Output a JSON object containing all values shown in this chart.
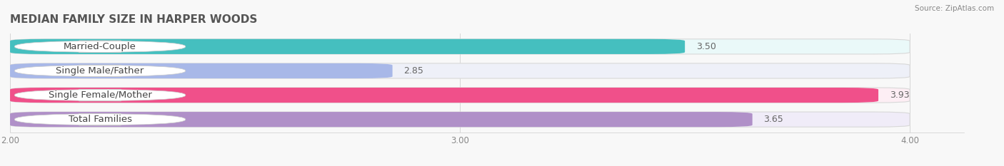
{
  "title": "MEDIAN FAMILY SIZE IN HARPER WOODS",
  "source": "Source: ZipAtlas.com",
  "categories": [
    "Married-Couple",
    "Single Male/Father",
    "Single Female/Mother",
    "Total Families"
  ],
  "values": [
    3.5,
    2.85,
    3.93,
    3.65
  ],
  "bar_colors": [
    "#45bfbf",
    "#a8b8e8",
    "#f0508a",
    "#b090c8"
  ],
  "bar_bg_colors": [
    "#eafafafa",
    "#eef0f8",
    "#fdeef4",
    "#f0ecf8"
  ],
  "xlim_min": 2.0,
  "xlim_max": 4.0,
  "xticks": [
    2.0,
    3.0,
    4.0
  ],
  "xtick_labels": [
    "2.00",
    "3.00",
    "4.00"
  ],
  "label_fontsize": 9.5,
  "value_fontsize": 9,
  "title_fontsize": 11,
  "background_color": "#f8f8f8",
  "bar_height": 0.62,
  "rounding_size": 0.08,
  "label_text_color": "#444444",
  "value_text_color": "#666666"
}
